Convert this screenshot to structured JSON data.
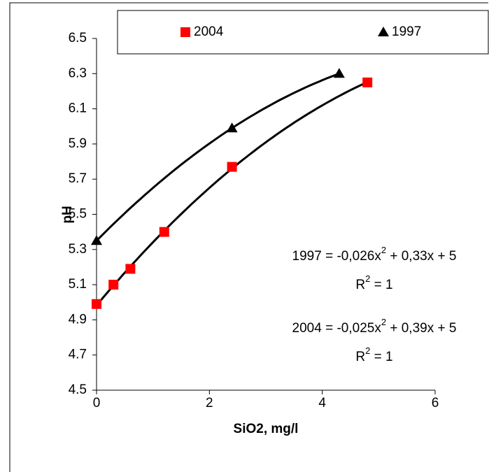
{
  "chart_data": {
    "type": "scatter",
    "x_label": "SiO2, mg/l",
    "y_label": "pH",
    "xlim": [
      0,
      6
    ],
    "xticks": [
      0,
      2,
      4,
      6
    ],
    "ylim": [
      4.5,
      6.5
    ],
    "yticks": [
      4.5,
      4.7,
      4.9,
      5.1,
      5.3,
      5.5,
      5.7,
      5.9,
      6.1,
      6.3,
      6.5
    ],
    "trendline": "polynomial",
    "series": [
      {
        "name": "2004",
        "color": "#ff0000",
        "marker": "square",
        "x": [
          0,
          0.3,
          0.6,
          1.2,
          2.4,
          4.8
        ],
        "values": [
          4.99,
          5.1,
          5.19,
          5.4,
          5.77,
          6.25
        ]
      },
      {
        "name": "1997",
        "color": "#000000",
        "marker": "triangle",
        "x": [
          0,
          2.4,
          4.3
        ],
        "values": [
          5.35,
          5.99,
          6.3
        ]
      }
    ],
    "annotations": [
      {
        "equation": [
          "1997 = -0,026x",
          "2",
          " + 0,33x + 5"
        ],
        "r2": [
          "R",
          "2",
          " = 1"
        ]
      },
      {
        "equation": [
          "2004 = -0,025x",
          "2",
          " + 0,39x + 5"
        ],
        "r2": [
          "R",
          "2",
          " = 1"
        ]
      }
    ]
  }
}
